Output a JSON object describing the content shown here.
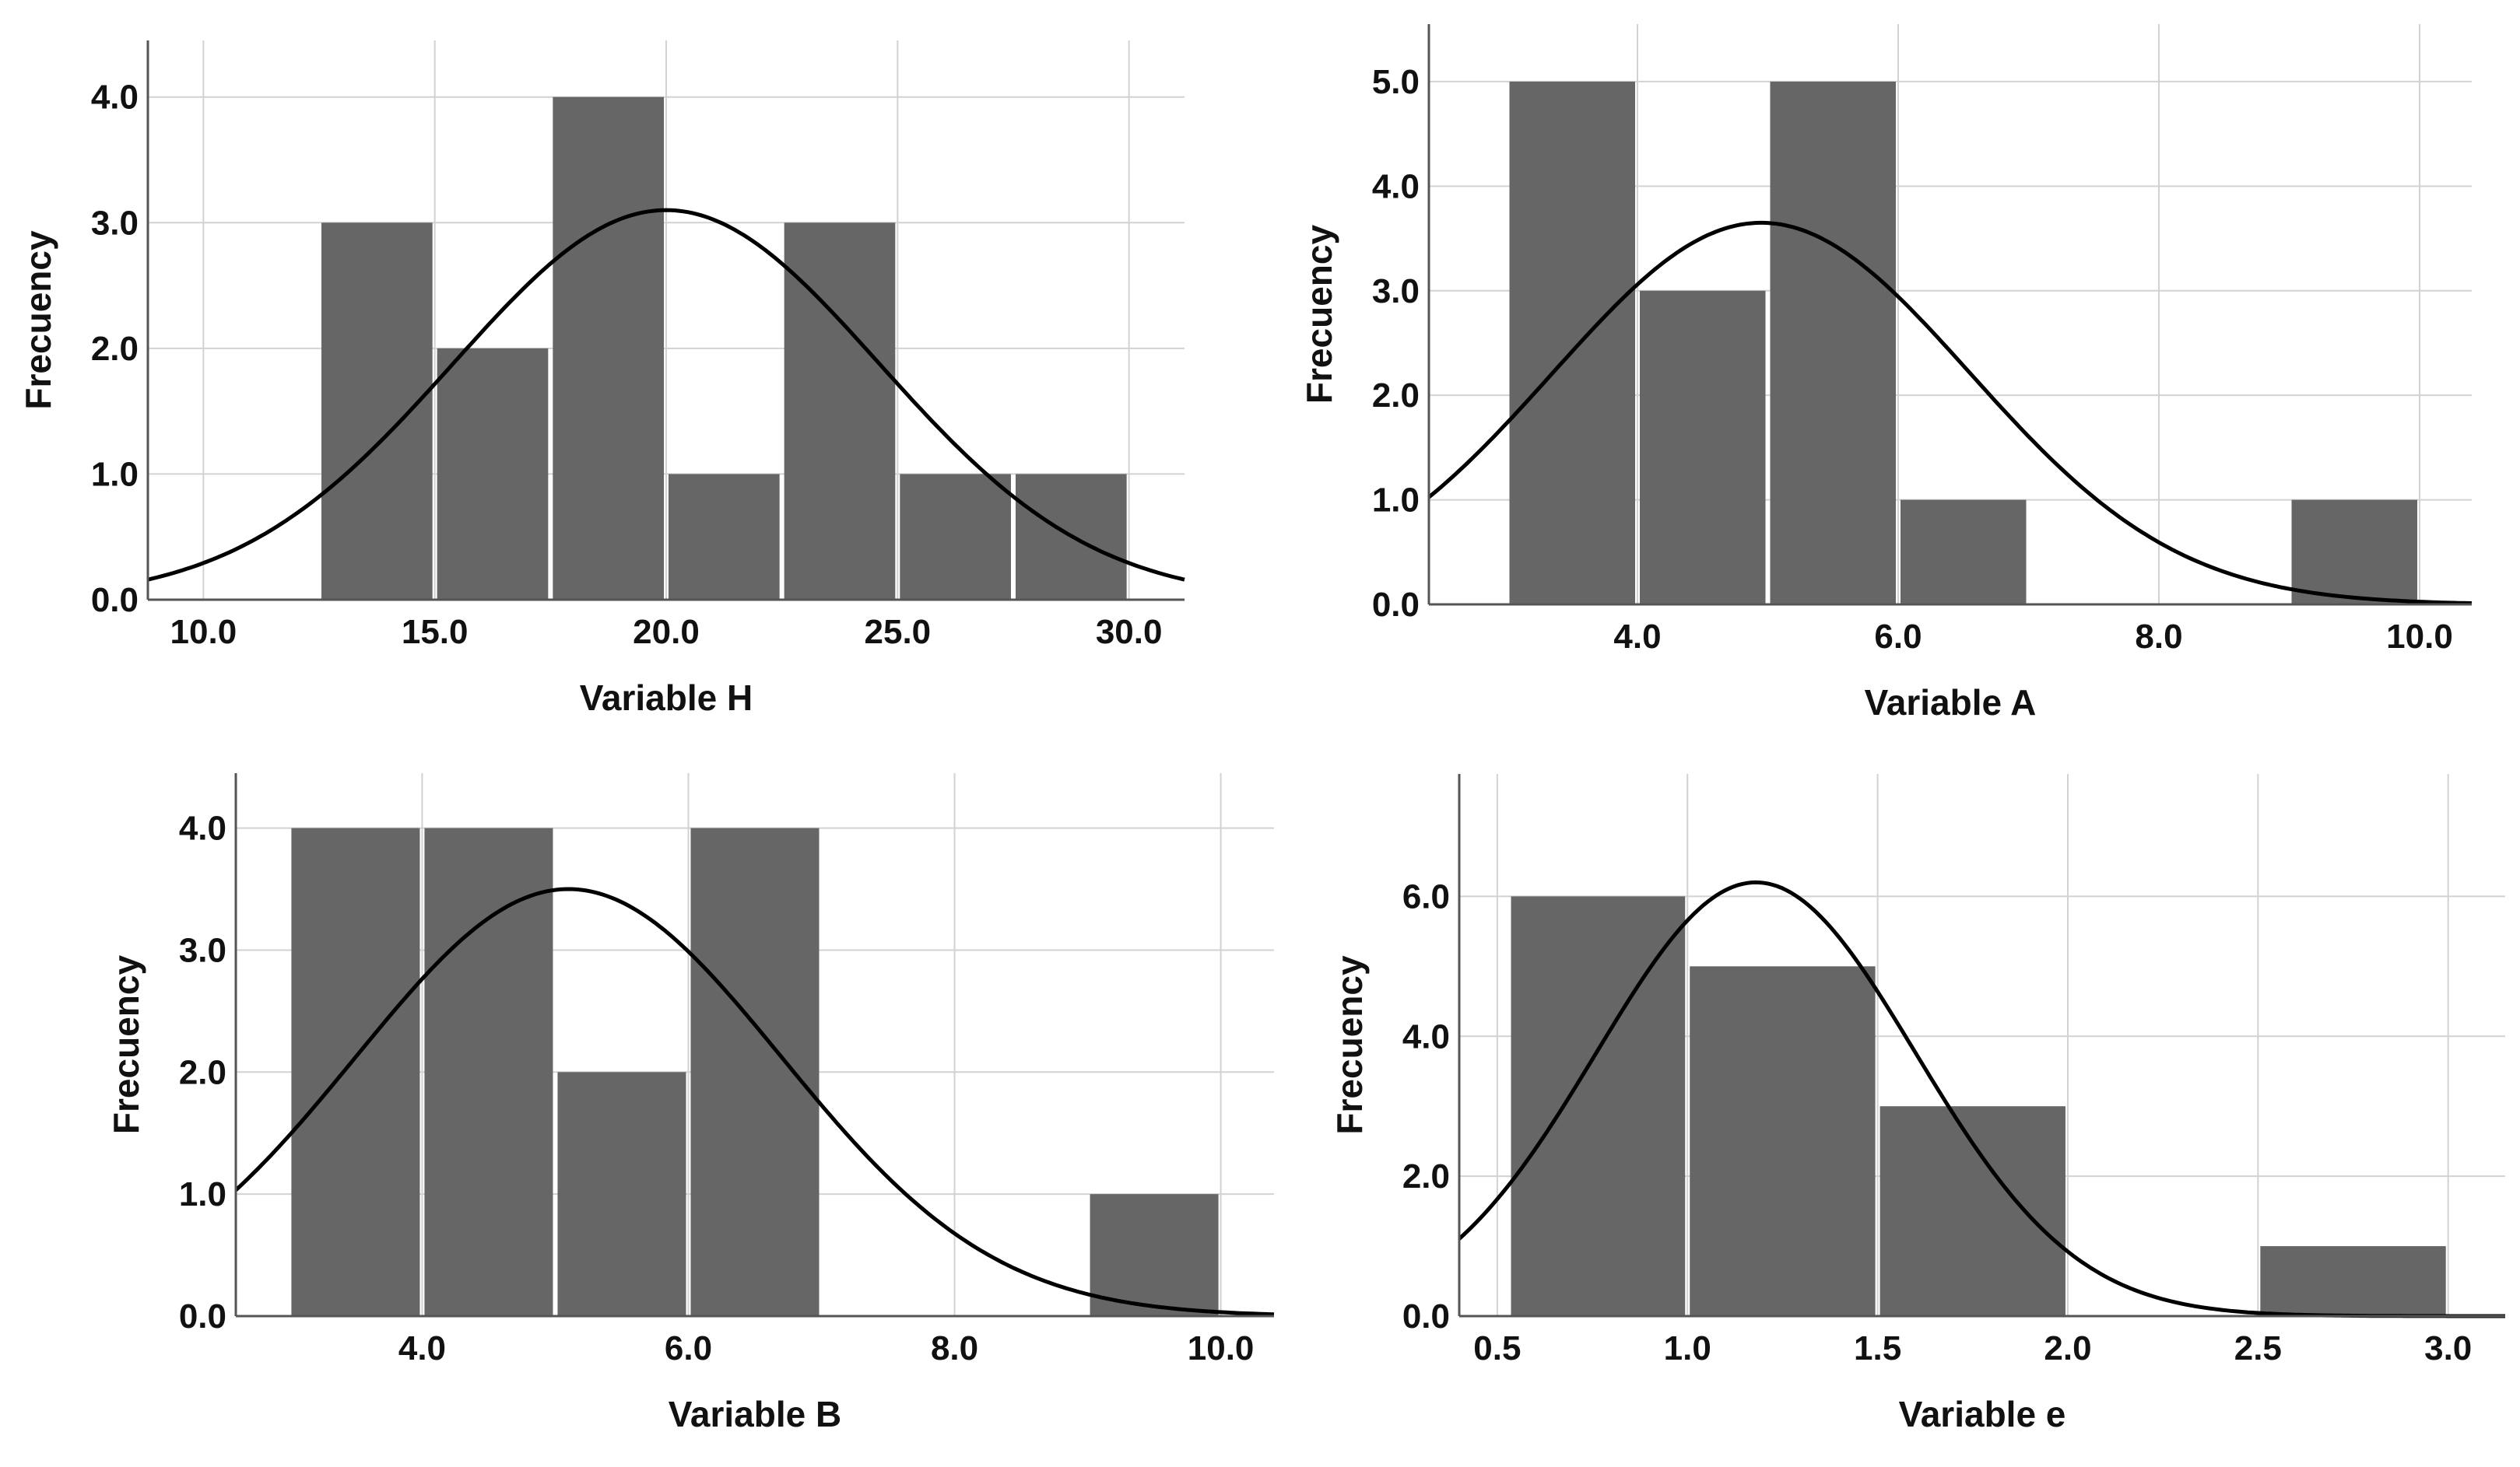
{
  "colors": {
    "bar": "#666666",
    "grid": "#d2d2d2",
    "axis": "#555555",
    "curve": "#000000",
    "background": "#ffffff"
  },
  "chart_data": [
    {
      "type": "bar",
      "subtype": "histogram-with-normal-curve",
      "xlabel": "Variable H",
      "ylabel": "Frecuency",
      "xlim": [
        8.8,
        31.2
      ],
      "ylim": [
        0,
        4.45
      ],
      "xticks": [
        10,
        15,
        20,
        25,
        30
      ],
      "xtick_labels": [
        "10.0",
        "15.0",
        "20.0",
        "25.0",
        "30.0"
      ],
      "yticks": [
        0,
        1,
        2,
        3,
        4
      ],
      "ytick_labels": [
        "0.0",
        "1.0",
        "2.0",
        "3.0",
        "4.0"
      ],
      "bins": [
        {
          "start": 12.5,
          "end": 15.0,
          "count": 3
        },
        {
          "start": 15.0,
          "end": 17.5,
          "count": 2
        },
        {
          "start": 17.5,
          "end": 20.0,
          "count": 4
        },
        {
          "start": 20.0,
          "end": 22.5,
          "count": 1
        },
        {
          "start": 22.5,
          "end": 25.0,
          "count": 3
        },
        {
          "start": 25.0,
          "end": 27.5,
          "count": 1
        },
        {
          "start": 27.5,
          "end": 30.0,
          "count": 1
        }
      ],
      "normal_curve": {
        "mean": 20.0,
        "sd": 4.6,
        "peak": 3.1
      }
    },
    {
      "type": "bar",
      "subtype": "histogram-with-normal-curve",
      "xlabel": "Variable A",
      "ylabel": "Frecuency",
      "xlim": [
        2.4,
        10.4
      ],
      "ylim": [
        0,
        5.55
      ],
      "xticks": [
        4,
        6,
        8,
        10
      ],
      "xtick_labels": [
        "4.0",
        "6.0",
        "8.0",
        "10.0"
      ],
      "yticks": [
        0,
        1,
        2,
        3,
        4,
        5
      ],
      "ytick_labels": [
        "0.0",
        "1.0",
        "2.0",
        "3.0",
        "4.0",
        "5.0"
      ],
      "bins": [
        {
          "start": 3.0,
          "end": 4.0,
          "count": 5
        },
        {
          "start": 4.0,
          "end": 5.0,
          "count": 3
        },
        {
          "start": 5.0,
          "end": 6.0,
          "count": 5
        },
        {
          "start": 6.0,
          "end": 7.0,
          "count": 1
        },
        {
          "start": 9.0,
          "end": 10.0,
          "count": 1
        }
      ],
      "normal_curve": {
        "mean": 4.95,
        "sd": 1.6,
        "peak": 3.65
      }
    },
    {
      "type": "bar",
      "subtype": "histogram-with-normal-curve",
      "xlabel": "Variable B",
      "ylabel": "Frecuency",
      "xlim": [
        2.6,
        10.4
      ],
      "ylim": [
        0,
        4.45
      ],
      "xticks": [
        4,
        6,
        8,
        10
      ],
      "xtick_labels": [
        "4.0",
        "6.0",
        "8.0",
        "10.0"
      ],
      "yticks": [
        0,
        1,
        2,
        3,
        4
      ],
      "ytick_labels": [
        "0.0",
        "1.0",
        "2.0",
        "3.0",
        "4.0"
      ],
      "bins": [
        {
          "start": 3.0,
          "end": 4.0,
          "count": 4
        },
        {
          "start": 4.0,
          "end": 5.0,
          "count": 4
        },
        {
          "start": 5.0,
          "end": 6.0,
          "count": 2
        },
        {
          "start": 6.0,
          "end": 7.0,
          "count": 4
        },
        {
          "start": 9.0,
          "end": 10.0,
          "count": 1
        }
      ],
      "normal_curve": {
        "mean": 5.1,
        "sd": 1.6,
        "peak": 3.5
      }
    },
    {
      "type": "bar",
      "subtype": "histogram-with-normal-curve",
      "xlabel": "Variable e",
      "ylabel": "Frecuency",
      "xlim": [
        0.4,
        3.15
      ],
      "ylim": [
        0,
        7.75
      ],
      "xticks": [
        0.5,
        1.0,
        1.5,
        2.0,
        2.5,
        3.0
      ],
      "xtick_labels": [
        "0.5",
        "1.0",
        "1.5",
        "2.0",
        "2.5",
        "3.0"
      ],
      "yticks": [
        0,
        2,
        4,
        6
      ],
      "ytick_labels": [
        "0.0",
        "2.0",
        "4.0",
        "6.0"
      ],
      "bins": [
        {
          "start": 0.53,
          "end": 1.0,
          "count": 6
        },
        {
          "start": 1.0,
          "end": 1.5,
          "count": 5
        },
        {
          "start": 1.5,
          "end": 2.0,
          "count": 3
        },
        {
          "start": 2.5,
          "end": 3.0,
          "count": 1
        }
      ],
      "normal_curve": {
        "mean": 1.18,
        "sd": 0.42,
        "peak": 6.2
      }
    }
  ]
}
